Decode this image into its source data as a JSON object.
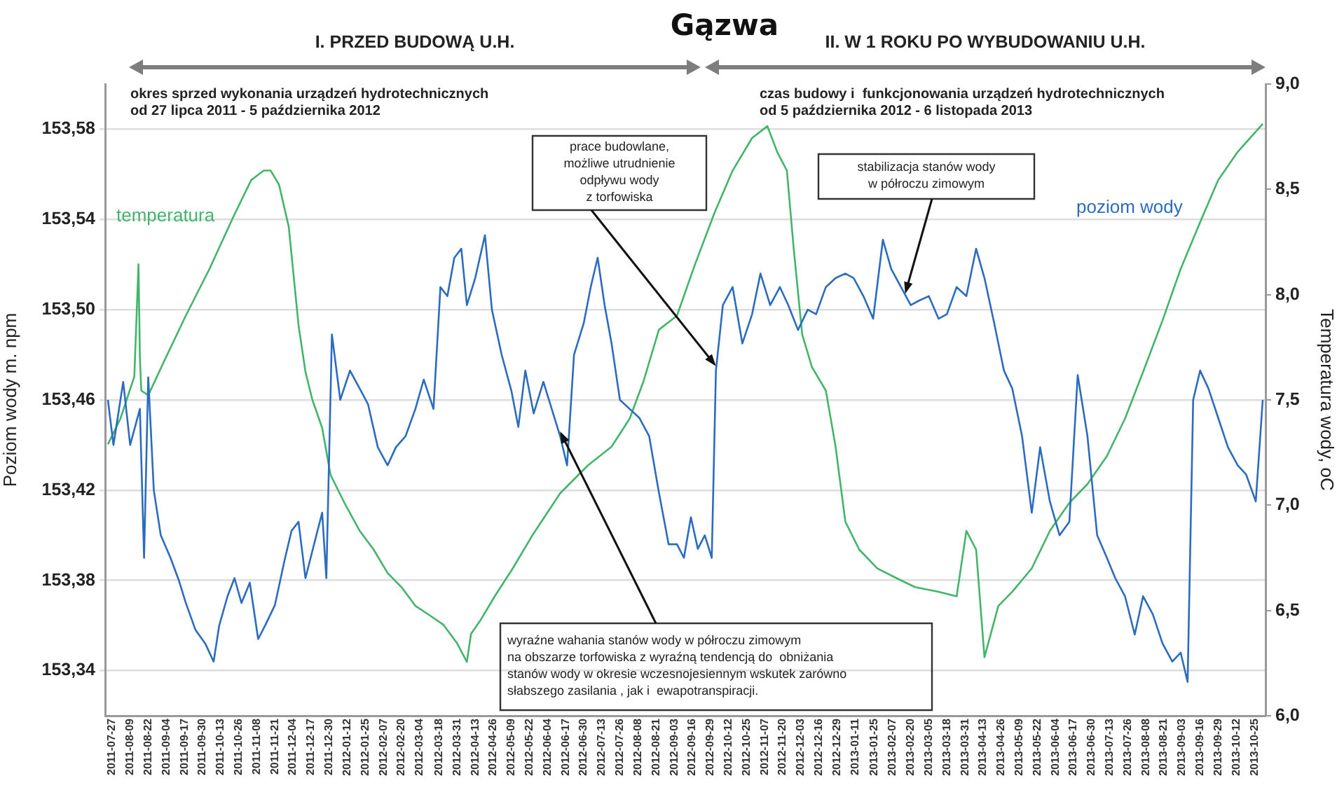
{
  "chart_data": {
    "type": "line",
    "title": "Gązwa",
    "ylabel": "Poziom wody m. npm",
    "y2label": "Temperatura wody, oC",
    "annotations": [
      "I. PRZED BUDOWĄ U.H.",
      "II. W 1 ROKU PO WYBUDOWANIU U.H.",
      "okres sprzed wykonania urządzeń hydrotechnicznych\nod 27 lipca 2011 - 5 października 2012",
      "czas budowy i  funkcjonowania urządzeń hydrotechnicznych\nod 5 października 2012 - 6 listopada 2013",
      {
        "text": "prace budowlane,\nmożliwe utrudnienie\nodpływu wody\nz torfowiska",
        "x": "2012-10-03",
        "y": 153.475
      },
      {
        "text": "stabilizacja stanów wody\nw półroczu zimowym",
        "x": "2013-02-16",
        "y": 153.507
      },
      {
        "text": "wyraźne wahania stanów wody w półroczu zimowym\nna obszarze torfowiska z wyraźną tendencją do  obniżania\nstanów wody w okresie wczesnojesiennym wskutek zarówno\nsłabszego zasilania , jak i  ewapotranspiracji.",
        "x": "2012-06-13",
        "y": 153.446
      }
    ],
    "series": [
      {
        "name": "poziom wody",
        "color": "#2b6cc0",
        "axis": "y",
        "x": [
          "2011-07-24",
          "2011-07-28",
          "2011-08-04",
          "2011-08-09",
          "2011-08-16",
          "2011-08-19",
          "2011-08-22",
          "2011-08-26",
          "2011-08-31",
          "2011-09-07",
          "2011-09-13",
          "2011-09-18",
          "2011-09-25",
          "2011-10-02",
          "2011-10-08",
          "2011-10-12",
          "2011-10-18",
          "2011-10-23",
          "2011-10-28",
          "2011-11-03",
          "2011-11-09",
          "2011-11-14",
          "2011-11-21",
          "2011-11-28",
          "2011-12-03",
          "2011-12-08",
          "2011-12-13",
          "2011-12-20",
          "2011-12-25",
          "2011-12-28",
          "2012-01-01",
          "2012-01-07",
          "2012-01-14",
          "2012-01-21",
          "2012-01-27",
          "2012-02-03",
          "2012-02-10",
          "2012-02-16",
          "2012-02-23",
          "2012-03-01",
          "2012-03-07",
          "2012-03-14",
          "2012-03-19",
          "2012-03-24",
          "2012-03-29",
          "2012-04-03",
          "2012-04-07",
          "2012-04-13",
          "2012-04-20",
          "2012-04-25",
          "2012-05-02",
          "2012-05-09",
          "2012-05-14",
          "2012-05-19",
          "2012-05-25",
          "2012-06-01",
          "2012-06-08",
          "2012-06-13",
          "2012-06-18",
          "2012-06-23",
          "2012-06-30",
          "2012-07-05",
          "2012-07-10",
          "2012-07-15",
          "2012-07-20",
          "2012-07-26",
          "2012-08-02",
          "2012-08-09",
          "2012-08-16",
          "2012-08-23",
          "2012-08-30",
          "2012-09-05",
          "2012-09-10",
          "2012-09-15",
          "2012-09-20",
          "2012-09-25",
          "2012-09-30",
          "2012-10-03",
          "2012-10-08",
          "2012-10-15",
          "2012-10-22",
          "2012-10-29",
          "2012-11-04",
          "2012-11-11",
          "2012-11-18",
          "2012-11-24",
          "2012-12-01",
          "2012-12-08",
          "2012-12-14",
          "2012-12-21",
          "2012-12-28",
          "2013-01-04",
          "2013-01-10",
          "2013-01-17",
          "2013-01-24",
          "2013-01-31",
          "2013-02-06",
          "2013-02-13",
          "2013-02-20",
          "2013-02-26",
          "2013-03-05",
          "2013-03-12",
          "2013-03-18",
          "2013-03-25",
          "2013-04-01",
          "2013-04-08",
          "2013-04-14",
          "2013-04-21",
          "2013-04-28",
          "2013-05-04",
          "2013-05-11",
          "2013-05-18",
          "2013-05-24",
          "2013-05-31",
          "2013-06-07",
          "2013-06-14",
          "2013-06-20",
          "2013-06-27",
          "2013-07-04",
          "2013-07-11",
          "2013-07-17",
          "2013-07-24",
          "2013-07-31",
          "2013-08-06",
          "2013-08-13",
          "2013-08-20",
          "2013-08-27",
          "2013-09-02",
          "2013-09-07",
          "2013-09-11",
          "2013-09-16",
          "2013-09-22",
          "2013-09-29",
          "2013-10-06",
          "2013-10-13",
          "2013-10-19",
          "2013-10-26",
          "2013-10-31"
        ],
        "values": [
          153.46,
          153.44,
          153.468,
          153.44,
          153.456,
          153.39,
          153.47,
          153.42,
          153.4,
          153.39,
          153.38,
          153.37,
          153.358,
          153.352,
          153.344,
          153.36,
          153.373,
          153.381,
          153.37,
          153.379,
          153.354,
          153.36,
          153.369,
          153.389,
          153.402,
          153.406,
          153.381,
          153.398,
          153.41,
          153.381,
          153.489,
          153.46,
          153.473,
          153.465,
          153.458,
          153.439,
          153.431,
          153.439,
          153.444,
          153.456,
          153.469,
          153.456,
          153.51,
          153.506,
          153.523,
          153.527,
          153.502,
          153.514,
          153.533,
          153.5,
          153.48,
          153.464,
          153.448,
          153.473,
          153.454,
          153.468,
          153.454,
          153.444,
          153.431,
          153.48,
          153.494,
          153.51,
          153.523,
          153.502,
          153.485,
          153.46,
          153.456,
          153.452,
          153.444,
          153.419,
          153.396,
          153.396,
          153.39,
          153.408,
          153.394,
          153.4,
          153.39,
          153.473,
          153.502,
          153.51,
          153.485,
          153.498,
          153.516,
          153.502,
          153.51,
          153.502,
          153.491,
          153.5,
          153.498,
          153.51,
          153.514,
          153.516,
          153.514,
          153.506,
          153.496,
          153.531,
          153.518,
          153.51,
          153.502,
          153.504,
          153.506,
          153.496,
          153.498,
          153.51,
          153.506,
          153.527,
          153.514,
          153.494,
          153.473,
          153.465,
          153.444,
          153.41,
          153.439,
          153.415,
          153.4,
          153.406,
          153.471,
          153.444,
          153.4,
          153.39,
          153.381,
          153.373,
          153.356,
          153.373,
          153.365,
          153.352,
          153.344,
          153.348,
          153.335,
          153.46,
          153.473,
          153.465,
          153.452,
          153.439,
          153.431,
          153.427,
          153.415,
          153.46
        ]
      },
      {
        "name": "temperatura",
        "color": "#43b56a",
        "axis": "y2",
        "x": [
          "2011-07-24",
          "2011-08-02",
          "2011-08-12",
          "2011-08-15",
          "2011-08-16",
          "2011-08-17",
          "2011-08-22",
          "2011-09-02",
          "2011-09-18",
          "2011-10-05",
          "2011-10-22",
          "2011-11-04",
          "2011-11-13",
          "2011-11-18",
          "2011-11-24",
          "2011-12-01",
          "2011-12-08",
          "2011-12-13",
          "2011-12-18",
          "2011-12-25",
          "2011-12-31",
          "2012-01-10",
          "2012-01-21",
          "2012-01-31",
          "2012-02-10",
          "2012-02-20",
          "2012-03-01",
          "2012-03-11",
          "2012-03-21",
          "2012-03-31",
          "2012-04-07",
          "2012-04-10",
          "2012-04-17",
          "2012-04-27",
          "2012-05-10",
          "2012-05-24",
          "2012-06-13",
          "2012-07-03",
          "2012-07-20",
          "2012-08-02",
          "2012-08-12",
          "2012-08-23",
          "2012-09-05",
          "2012-09-18",
          "2012-10-02",
          "2012-10-15",
          "2012-10-29",
          "2012-11-09",
          "2012-11-16",
          "2012-11-23",
          "2012-11-28",
          "2012-12-04",
          "2012-12-11",
          "2012-12-21",
          "2012-12-28",
          "2013-01-04",
          "2013-01-14",
          "2013-01-27",
          "2013-02-09",
          "2013-02-23",
          "2013-03-12",
          "2013-03-25",
          "2013-04-01",
          "2013-04-08",
          "2013-04-14",
          "2013-04-24",
          "2013-05-04",
          "2013-05-18",
          "2013-05-31",
          "2013-06-14",
          "2013-06-27",
          "2013-07-11",
          "2013-07-24",
          "2013-08-06",
          "2013-08-20",
          "2013-09-02",
          "2013-09-16",
          "2013-09-29",
          "2013-10-13",
          "2013-10-31"
        ],
        "values": [
          7.289,
          7.411,
          7.611,
          8.144,
          7.7,
          7.544,
          7.522,
          7.678,
          7.9,
          8.122,
          8.367,
          8.544,
          8.589,
          8.589,
          8.522,
          8.322,
          7.856,
          7.633,
          7.5,
          7.367,
          7.144,
          7.011,
          6.878,
          6.789,
          6.678,
          6.611,
          6.522,
          6.478,
          6.433,
          6.344,
          6.256,
          6.389,
          6.456,
          6.567,
          6.7,
          6.856,
          7.056,
          7.189,
          7.278,
          7.411,
          7.589,
          7.833,
          7.9,
          8.144,
          8.389,
          8.589,
          8.744,
          8.8,
          8.678,
          8.589,
          8.211,
          7.811,
          7.656,
          7.544,
          7.278,
          6.922,
          6.789,
          6.7,
          6.656,
          6.611,
          6.589,
          6.567,
          6.878,
          6.789,
          6.278,
          6.522,
          6.589,
          6.7,
          6.878,
          7.011,
          7.1,
          7.233,
          7.411,
          7.633,
          7.878,
          8.122,
          8.344,
          8.544,
          8.678,
          8.811
        ]
      }
    ],
    "xlim": [
      "2011-07-22",
      "2013-11-02"
    ],
    "xticks": [
      "2011-07-27",
      "2011-08-09",
      "2011-08-22",
      "2011-09-04",
      "2011-09-17",
      "2011-09-30",
      "2011-10-13",
      "2011-10-26",
      "2011-11-08",
      "2011-11-21",
      "2011-12-04",
      "2011-12-17",
      "2011-12-30",
      "2012-01-12",
      "2012-01-25",
      "2012-02-07",
      "2012-02-20",
      "2012-03-04",
      "2012-03-18",
      "2012-03-31",
      "2012-04-13",
      "2012-04-26",
      "2012-05-09",
      "2012-05-22",
      "2012-06-04",
      "2012-06-17",
      "2012-06-30",
      "2012-07-13",
      "2012-07-26",
      "2012-08-08",
      "2012-08-21",
      "2012-09-03",
      "2012-09-16",
      "2012-09-29",
      "2012-10-12",
      "2012-10-25",
      "2012-11-07",
      "2012-11-20",
      "2012-12-03",
      "2012-12-16",
      "2012-12-29",
      "2013-01-11",
      "2013-01-25",
      "2013-02-07",
      "2013-02-20",
      "2013-03-05",
      "2013-03-18",
      "2013-03-31",
      "2013-04-13",
      "2013-04-26",
      "2013-05-09",
      "2013-05-22",
      "2013-06-04",
      "2013-06-17",
      "2013-06-30",
      "2013-07-13",
      "2013-07-26",
      "2013-08-08",
      "2013-08-21",
      "2013-09-03",
      "2013-09-16",
      "2013-09-29",
      "2013-10-12",
      "2013-10-25"
    ],
    "ylim": [
      153.32,
      153.6
    ],
    "yticks": [
      {
        "value": 153.34,
        "label": "153,34"
      },
      {
        "value": 153.38,
        "label": "153,38"
      },
      {
        "value": 153.42,
        "label": "153,42"
      },
      {
        "value": 153.46,
        "label": "153,46"
      },
      {
        "value": 153.5,
        "label": "153,50"
      },
      {
        "value": 153.54,
        "label": "153,54"
      },
      {
        "value": 153.58,
        "label": "153,58"
      }
    ],
    "y2lim": [
      6.0,
      9.0
    ],
    "y2ticks": [
      {
        "value": 6.0,
        "label": "6,0"
      },
      {
        "value": 6.5,
        "label": "6,5"
      },
      {
        "value": 7.0,
        "label": "7,0"
      },
      {
        "value": 7.5,
        "label": "7,5"
      },
      {
        "value": 8.0,
        "label": "8,0"
      },
      {
        "value": 8.5,
        "label": "8,5"
      },
      {
        "value": 9.0,
        "label": "9,0"
      }
    ],
    "grid": "y"
  }
}
